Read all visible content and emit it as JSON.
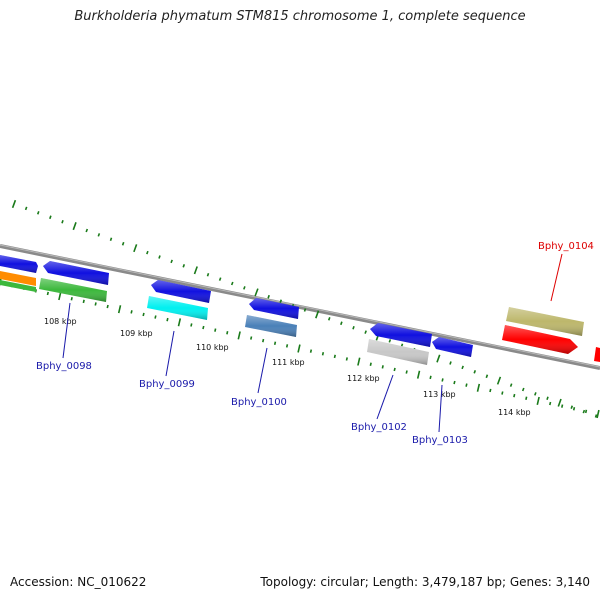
{
  "title": "Burkholderia phymatum STM815 chromosome 1, complete sequence",
  "footer": {
    "accession": "Accession: NC_010622",
    "summary": "Topology: circular; Length: 3,479,187 bp; Genes: 3,140"
  },
  "colors": {
    "backbone": "#8a8a8a",
    "tick": "#1a7a1a",
    "label_default": "#1a1aaa",
    "label_highlight": "#dd0000"
  },
  "ticks": [
    {
      "label": "108 kbp"
    },
    {
      "label": "109 kbp"
    },
    {
      "label": "110 kbp"
    },
    {
      "label": "111 kbp"
    },
    {
      "label": "112 kbp"
    },
    {
      "label": "113 kbp"
    },
    {
      "label": "114 kbp"
    }
  ],
  "gene_labels": [
    {
      "text": "Bphy_0098",
      "color": "#1a1aaa"
    },
    {
      "text": "Bphy_0099",
      "color": "#1a1aaa"
    },
    {
      "text": "Bphy_0100",
      "color": "#1a1aaa"
    },
    {
      "text": "Bphy_0102",
      "color": "#1a1aaa"
    },
    {
      "text": "Bphy_0103",
      "color": "#1a1aaa"
    },
    {
      "text": "Bphy_0104",
      "color": "#dd0000"
    }
  ],
  "features": [
    {
      "name": "feature-blue-left-top",
      "color": "#1010e0"
    },
    {
      "name": "feature-orange-left",
      "color": "#ff8c00"
    },
    {
      "name": "feature-green-left",
      "color": "#3cb83c"
    },
    {
      "name": "feature-blue-0098",
      "color": "#1010e0"
    },
    {
      "name": "feature-green-0098",
      "color": "#3cb83c"
    },
    {
      "name": "feature-blue-0099",
      "color": "#1010e0"
    },
    {
      "name": "feature-cyan-0099",
      "color": "#00f0f0"
    },
    {
      "name": "feature-blue-0100",
      "color": "#1010e0"
    },
    {
      "name": "feature-steelblue-0100",
      "color": "#4a80b8"
    },
    {
      "name": "feature-blue-0102",
      "color": "#1010e0"
    },
    {
      "name": "feature-gray-0102",
      "color": "#c8c8c8"
    },
    {
      "name": "feature-blue-0103",
      "color": "#1010e0"
    },
    {
      "name": "feature-khaki-0104",
      "color": "#bdb76b"
    },
    {
      "name": "feature-red-0104",
      "color": "#ff0000"
    },
    {
      "name": "feature-red-right",
      "color": "#ff0000"
    }
  ]
}
